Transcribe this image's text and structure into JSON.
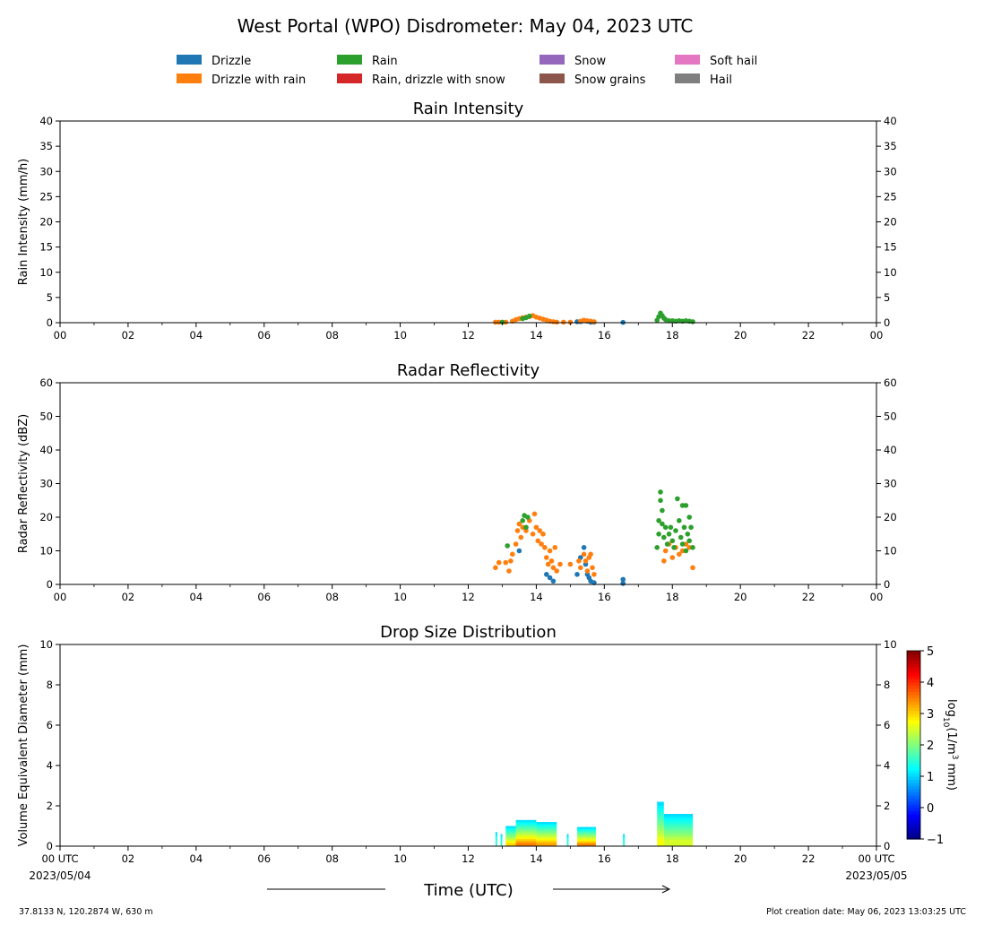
{
  "figure": {
    "title": "West Portal (WPO) Disdrometer: May 04, 2023 UTC",
    "location": "37.8133 N, 120.2874 W, 630 m",
    "creation": "Plot creation date: May 06, 2023 13:03:25 UTC",
    "xlabel": "Time (UTC)",
    "x_date_start": "2023/05/04",
    "x_date_end": "2023/05/05"
  },
  "legend": [
    {
      "label": "Drizzle",
      "color": "#1f77b4"
    },
    {
      "label": "Drizzle with rain",
      "color": "#ff7f0e"
    },
    {
      "label": "Rain",
      "color": "#2ca02c"
    },
    {
      "label": "Rain, drizzle with snow",
      "color": "#d62728"
    },
    {
      "label": "Snow",
      "color": "#9467bd"
    },
    {
      "label": "Snow grains",
      "color": "#8c564b"
    },
    {
      "label": "Soft hail",
      "color": "#e377c2"
    },
    {
      "label": "Hail",
      "color": "#7f7f7f"
    }
  ],
  "chart_data": [
    {
      "type": "scatter",
      "title": "Rain Intensity",
      "ylabel": "Rain Intensity (mm/h)",
      "xlim": [
        0,
        24
      ],
      "ylim": [
        0,
        40
      ],
      "x_ticks": [
        "00",
        "02",
        "04",
        "06",
        "08",
        "10",
        "12",
        "14",
        "16",
        "18",
        "20",
        "22",
        "00"
      ],
      "y_ticks": [
        0,
        5,
        10,
        15,
        20,
        25,
        30,
        35,
        40
      ],
      "series": [
        {
          "name": "Drizzle",
          "color": "#1f77b4",
          "points": [
            [
              15.2,
              0.2
            ],
            [
              15.3,
              0.2
            ],
            [
              15.5,
              0.3
            ],
            [
              15.6,
              0.1
            ],
            [
              15.7,
              0.1
            ],
            [
              16.55,
              0.05
            ]
          ]
        },
        {
          "name": "Drizzle with rain",
          "color": "#ff7f0e",
          "points": [
            [
              12.8,
              0.1
            ],
            [
              12.9,
              0.1
            ],
            [
              13.1,
              0.1
            ],
            [
              13.3,
              0.3
            ],
            [
              13.4,
              0.6
            ],
            [
              13.5,
              0.8
            ],
            [
              13.6,
              1.0
            ],
            [
              13.7,
              1.1
            ],
            [
              13.8,
              1.2
            ],
            [
              13.9,
              1.4
            ],
            [
              14.0,
              1.1
            ],
            [
              14.1,
              0.9
            ],
            [
              14.2,
              0.7
            ],
            [
              14.3,
              0.5
            ],
            [
              14.4,
              0.3
            ],
            [
              14.5,
              0.2
            ],
            [
              14.6,
              0.1
            ],
            [
              14.8,
              0.1
            ],
            [
              15.0,
              0.1
            ],
            [
              15.3,
              0.3
            ],
            [
              15.4,
              0.5
            ],
            [
              15.5,
              0.4
            ],
            [
              15.6,
              0.3
            ],
            [
              15.7,
              0.2
            ]
          ]
        },
        {
          "name": "Rain",
          "color": "#2ca02c",
          "points": [
            [
              13.0,
              0.1
            ],
            [
              13.6,
              0.8
            ],
            [
              13.7,
              1.0
            ],
            [
              13.8,
              1.3
            ],
            [
              17.55,
              0.5
            ],
            [
              17.6,
              1.2
            ],
            [
              17.65,
              1.9
            ],
            [
              17.7,
              1.4
            ],
            [
              17.75,
              0.9
            ],
            [
              17.8,
              0.6
            ],
            [
              17.9,
              0.4
            ],
            [
              18.0,
              0.4
            ],
            [
              18.1,
              0.3
            ],
            [
              18.2,
              0.4
            ],
            [
              18.3,
              0.3
            ],
            [
              18.4,
              0.4
            ],
            [
              18.5,
              0.3
            ],
            [
              18.6,
              0.2
            ]
          ]
        }
      ]
    },
    {
      "type": "scatter",
      "title": "Radar Reflectivity",
      "ylabel": "Radar Reflectivity (dBZ)",
      "xlim": [
        0,
        24
      ],
      "ylim": [
        0,
        60
      ],
      "x_ticks": [
        "00",
        "02",
        "04",
        "06",
        "08",
        "10",
        "12",
        "14",
        "16",
        "18",
        "20",
        "22",
        "00"
      ],
      "y_ticks": [
        0,
        10,
        20,
        30,
        40,
        50,
        60
      ],
      "series": [
        {
          "name": "Drizzle",
          "color": "#1f77b4",
          "points": [
            [
              13.5,
              10
            ],
            [
              14.3,
              3
            ],
            [
              14.4,
              2
            ],
            [
              14.5,
              1
            ],
            [
              15.2,
              3
            ],
            [
              15.3,
              8
            ],
            [
              15.4,
              11
            ],
            [
              15.45,
              6
            ],
            [
              15.5,
              3
            ],
            [
              15.55,
              2
            ],
            [
              15.6,
              1
            ],
            [
              15.7,
              0.5
            ],
            [
              16.55,
              1.5
            ],
            [
              16.55,
              0.3
            ]
          ]
        },
        {
          "name": "Drizzle with rain",
          "color": "#ff7f0e",
          "points": [
            [
              12.8,
              5
            ],
            [
              12.9,
              6.5
            ],
            [
              13.1,
              6.5
            ],
            [
              13.2,
              4
            ],
            [
              13.25,
              7
            ],
            [
              13.3,
              9
            ],
            [
              13.4,
              12
            ],
            [
              13.45,
              16
            ],
            [
              13.5,
              18
            ],
            [
              13.55,
              14
            ],
            [
              13.6,
              17
            ],
            [
              13.7,
              16
            ],
            [
              13.8,
              19
            ],
            [
              13.9,
              15
            ],
            [
              13.95,
              21
            ],
            [
              14.0,
              17
            ],
            [
              14.05,
              13
            ],
            [
              14.1,
              16
            ],
            [
              14.15,
              12
            ],
            [
              14.2,
              15
            ],
            [
              14.25,
              11
            ],
            [
              14.3,
              8
            ],
            [
              14.35,
              6
            ],
            [
              14.4,
              10
            ],
            [
              14.45,
              7
            ],
            [
              14.5,
              5
            ],
            [
              14.55,
              11
            ],
            [
              14.6,
              4
            ],
            [
              14.7,
              6
            ],
            [
              15.0,
              6
            ],
            [
              15.25,
              7
            ],
            [
              15.3,
              5
            ],
            [
              15.4,
              9
            ],
            [
              15.45,
              7
            ],
            [
              15.5,
              4
            ],
            [
              15.55,
              8
            ],
            [
              15.6,
              9
            ],
            [
              15.65,
              5
            ],
            [
              15.7,
              3
            ],
            [
              17.75,
              7
            ],
            [
              17.8,
              10
            ],
            [
              17.9,
              12
            ],
            [
              18.0,
              8
            ],
            [
              18.1,
              11
            ],
            [
              18.2,
              9
            ],
            [
              18.3,
              10
            ],
            [
              18.4,
              12
            ],
            [
              18.5,
              11
            ],
            [
              18.6,
              5
            ]
          ]
        },
        {
          "name": "Rain",
          "color": "#2ca02c",
          "points": [
            [
              13.15,
              11.5
            ],
            [
              13.6,
              19
            ],
            [
              13.65,
              20.5
            ],
            [
              13.7,
              17
            ],
            [
              13.75,
              20
            ],
            [
              17.55,
              11
            ],
            [
              17.6,
              15
            ],
            [
              17.6,
              19
            ],
            [
              17.65,
              25
            ],
            [
              17.65,
              27.5
            ],
            [
              17.7,
              22
            ],
            [
              17.7,
              18
            ],
            [
              17.75,
              14
            ],
            [
              17.8,
              17
            ],
            [
              17.85,
              12
            ],
            [
              17.9,
              15
            ],
            [
              17.95,
              17
            ],
            [
              18.0,
              13
            ],
            [
              18.05,
              11
            ],
            [
              18.1,
              16
            ],
            [
              18.15,
              25.5
            ],
            [
              18.2,
              19
            ],
            [
              18.25,
              14
            ],
            [
              18.3,
              23.5
            ],
            [
              18.3,
              12
            ],
            [
              18.35,
              17
            ],
            [
              18.4,
              10
            ],
            [
              18.4,
              23.5
            ],
            [
              18.45,
              15
            ],
            [
              18.5,
              20
            ],
            [
              18.5,
              13
            ],
            [
              18.55,
              17
            ],
            [
              18.6,
              11
            ]
          ]
        }
      ]
    },
    {
      "type": "heatmap",
      "title": "Drop Size Distribution",
      "ylabel": "Volume Equivalent Diameter (mm)",
      "xlim": [
        0,
        24
      ],
      "ylim": [
        0,
        10
      ],
      "x_ticks": [
        "00 UTC",
        "02",
        "04",
        "06",
        "08",
        "10",
        "12",
        "14",
        "16",
        "18",
        "20",
        "22",
        "00 UTC"
      ],
      "y_ticks": [
        0,
        2,
        4,
        6,
        8,
        10
      ],
      "colorbar": {
        "label": "log10(1/m3 mm)",
        "min": -1,
        "max": 5,
        "ticks": [
          5,
          4,
          3,
          2,
          1,
          0,
          -1
        ]
      },
      "columns": [
        {
          "t0": 12.8,
          "t1": 12.85,
          "top": 0.7,
          "core": 2
        },
        {
          "t0": 12.95,
          "t1": 13.0,
          "top": 0.6,
          "core": 2
        },
        {
          "t0": 13.1,
          "t1": 13.4,
          "top": 1.0,
          "core": 3.5
        },
        {
          "t0": 13.4,
          "t1": 14.0,
          "top": 1.3,
          "core": 4
        },
        {
          "t0": 14.0,
          "t1": 14.6,
          "top": 1.2,
          "core": 3.8
        },
        {
          "t0": 14.9,
          "t1": 14.95,
          "top": 0.6,
          "core": 2
        },
        {
          "t0": 15.2,
          "t1": 15.75,
          "top": 0.95,
          "core": 4
        },
        {
          "t0": 16.55,
          "t1": 16.6,
          "top": 0.6,
          "core": 2
        },
        {
          "t0": 17.55,
          "t1": 17.75,
          "top": 2.2,
          "core": 3.2
        },
        {
          "t0": 17.75,
          "t1": 18.6,
          "top": 1.6,
          "core": 3
        }
      ]
    }
  ]
}
